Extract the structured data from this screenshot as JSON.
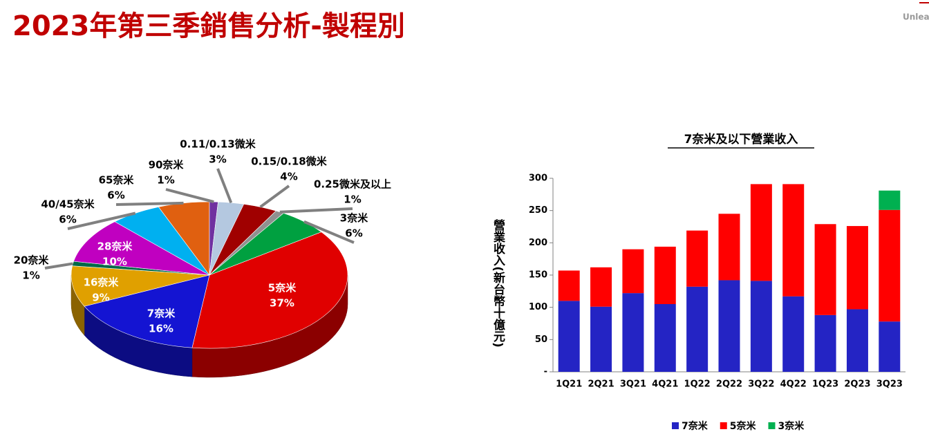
{
  "title": "2023年第三季銷售分析-製程別",
  "brand": "Unleas",
  "chart_data": [
    {
      "type": "pie",
      "categories": [
        "5奈米",
        "7奈米",
        "16奈米",
        "20奈米",
        "28奈米",
        "40/45奈米",
        "65奈米",
        "90奈米",
        "0.11/0.13微米",
        "0.15/0.18微米",
        "0.25微米及以上",
        "3奈米"
      ],
      "values": [
        37,
        16,
        9,
        1,
        10,
        6,
        6,
        1,
        3,
        4,
        1,
        6
      ],
      "value_labels": [
        "37%",
        "16%",
        "9%",
        "1%",
        "10%",
        "6%",
        "6%",
        "1%",
        "3%",
        "4%",
        "1%",
        "6%"
      ],
      "colors": [
        "#e00000",
        "#1414d2",
        "#e0a000",
        "#006848",
        "#c000c0",
        "#00b0f0",
        "#e06010",
        "#7030a0",
        "#b4c8e0",
        "#a00000",
        "#909090",
        "#00a040"
      ]
    },
    {
      "type": "bar",
      "stacked": true,
      "title": "7奈米及以下營業收入",
      "y_label": "營業收入(新台幣十億元)",
      "categories": [
        "1Q21",
        "2Q21",
        "3Q21",
        "4Q21",
        "1Q22",
        "2Q22",
        "3Q22",
        "4Q22",
        "1Q23",
        "2Q23",
        "3Q23"
      ],
      "series": [
        {
          "name": "7奈米",
          "color": "#2424c4",
          "values": [
            110,
            101,
            122,
            105,
            132,
            142,
            141,
            117,
            88,
            97,
            78
          ]
        },
        {
          "name": "5奈米",
          "color": "#ff0000",
          "values": [
            47,
            61,
            68,
            89,
            87,
            103,
            150,
            174,
            141,
            129,
            173
          ]
        },
        {
          "name": "3奈米",
          "color": "#00b050",
          "values": [
            null,
            null,
            null,
            null,
            null,
            null,
            null,
            null,
            null,
            null,
            30
          ]
        }
      ],
      "ylim": [
        0,
        300
      ],
      "yticks": [
        {
          "value": 0,
          "label": "-"
        },
        50,
        100,
        150,
        200,
        250,
        300
      ]
    }
  ]
}
